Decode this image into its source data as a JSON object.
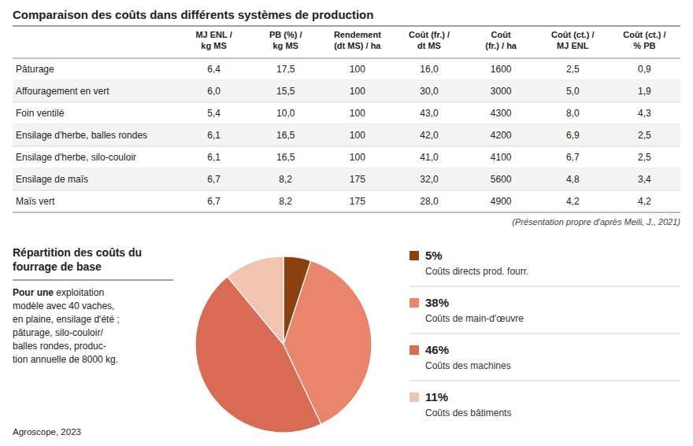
{
  "chart_data": [
    {
      "type": "table",
      "title": "Comparaison des coûts dans différents systèmes de production",
      "categories": [
        "Pâturage",
        "Affouragement en vert",
        "Foin ventilé",
        "Ensilage d'herbe, balles rondes",
        "Ensilage d'herbe, silo-couloir",
        "Ensilage de maïs",
        "Maïs vert"
      ],
      "series": [
        {
          "name": "MJ ENL /\nkg MS",
          "values": [
            6.4,
            6.0,
            5.4,
            6.1,
            6.1,
            6.7,
            6.7
          ],
          "value_labels": [
            "6,4",
            "6,0",
            "5,4",
            "6,1",
            "6,1",
            "6,7",
            "6,7"
          ]
        },
        {
          "name": "PB (%) /\nkg MS",
          "values": [
            17.5,
            15.5,
            10.0,
            16.5,
            16.5,
            8.2,
            8.2
          ],
          "value_labels": [
            "17,5",
            "15,5",
            "10,0",
            "16,5",
            "16,5",
            "8,2",
            "8,2"
          ]
        },
        {
          "name": "Rendement\n(dt MS) / ha",
          "values": [
            100,
            100,
            100,
            100,
            100,
            175,
            175
          ],
          "value_labels": [
            "100",
            "100",
            "100",
            "100",
            "100",
            "175",
            "175"
          ]
        },
        {
          "name": "Coût (fr.) /\ndt MS",
          "values": [
            16.0,
            30.0,
            43.0,
            42.0,
            41.0,
            32.0,
            28.0
          ],
          "value_labels": [
            "16,0",
            "30,0",
            "43,0",
            "42,0",
            "41,0",
            "32,0",
            "28,0"
          ]
        },
        {
          "name": "Coût\n(fr.) / ha",
          "values": [
            1600,
            3000,
            4300,
            4200,
            4100,
            5600,
            4900
          ],
          "value_labels": [
            "1600",
            "3000",
            "4300",
            "4200",
            "4100",
            "5600",
            "4900"
          ]
        },
        {
          "name": "Coût (ct.) /\nMJ ENL",
          "values": [
            2.5,
            5.0,
            8.0,
            6.9,
            6.7,
            4.8,
            4.2
          ],
          "value_labels": [
            "2,5",
            "5,0",
            "8,0",
            "6,9",
            "6,7",
            "4,8",
            "4,2"
          ]
        },
        {
          "name": "Coût (ct.) /\n% PB",
          "values": [
            0.9,
            1.9,
            4.3,
            2.5,
            2.5,
            3.4,
            4.2
          ],
          "value_labels": [
            "0,9",
            "1,9",
            "4,3",
            "2,5",
            "2,5",
            "3,4",
            "4,2"
          ]
        }
      ],
      "annotations": [
        "(Présentation propre d'après Meili, J., 2021)"
      ]
    },
    {
      "type": "pie",
      "title": "Répartition des coûts du\nfourrage de base",
      "categories": [
        "Coûts directs prod. fourr.",
        "Coûts de main-d'œuvre",
        "Coûts des machines",
        "Coûts des bâtiments"
      ],
      "values": [
        5,
        38,
        46,
        11
      ],
      "value_labels": [
        "5%",
        "38%",
        "46%",
        "11%"
      ],
      "colors": [
        "#8B4010",
        "#e8856a",
        "#d96b55",
        "#f0c4ae"
      ],
      "data_labels": true,
      "legend": "right",
      "annotations": [
        "Pour une",
        " exploitation\nmodèle avec 40 vaches,\nen plaine, ensilage d'été ;\npâturage, silo-couloir/\nballes rondes, produc-\ntion annuelle de 8000 kg.",
        "Agroscope, 2023"
      ]
    }
  ]
}
